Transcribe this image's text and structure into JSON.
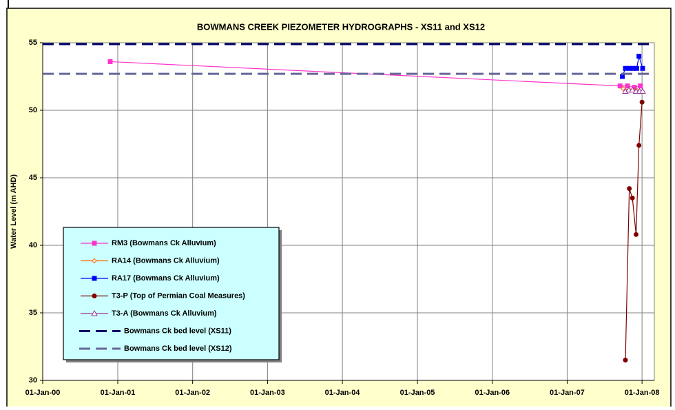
{
  "chart_data": {
    "type": "scatter",
    "title": "BOWMANS CREEK PIEZOMETER HYDROGRAPHS - XS11 and XS12",
    "y_label": "Water Level (m AHD)",
    "xlim": [
      "2000-01-01",
      "2008-03-01"
    ],
    "xticks": [
      {
        "value": "2000-01-01",
        "label": "01-Jan-00"
      },
      {
        "value": "2001-01-01",
        "label": "01-Jan-01"
      },
      {
        "value": "2002-01-01",
        "label": "01-Jan-02"
      },
      {
        "value": "2003-01-01",
        "label": "01-Jan-03"
      },
      {
        "value": "2004-01-01",
        "label": "01-Jan-04"
      },
      {
        "value": "2005-01-01",
        "label": "01-Jan-05"
      },
      {
        "value": "2006-01-01",
        "label": "01-Jan-06"
      },
      {
        "value": "2007-01-01",
        "label": "01-Jan-07"
      },
      {
        "value": "2008-01-01",
        "label": "01-Jan-08"
      }
    ],
    "ylim": [
      30,
      55
    ],
    "yticks": [
      30,
      35,
      40,
      45,
      50,
      55
    ],
    "grid": true,
    "series": [
      {
        "name": "RM3 (Bowmans Ck Alluvium)",
        "color": "#ff33cc",
        "marker": "square",
        "x": [
          "2000-11-25",
          "2007-09-16",
          "2007-10-22",
          "2007-11-25",
          "2007-12-24"
        ],
        "values": [
          53.6,
          51.8,
          51.8,
          51.7,
          51.8
        ]
      },
      {
        "name": "RA14 (Bowmans Ck Alluvium)",
        "color": "#ff6600",
        "marker": "diamond",
        "x": [
          "2007-10-01",
          "2007-11-01",
          "2007-12-05"
        ],
        "values": [
          51.6,
          51.5,
          51.5
        ]
      },
      {
        "name": "RA17 (Bowmans Ck Alluvium)",
        "color": "#0000ff",
        "marker": "square",
        "x": [
          "2007-09-27",
          "2007-10-12",
          "2007-10-31",
          "2007-11-18",
          "2007-12-06",
          "2007-12-17",
          "2008-01-04"
        ],
        "values": [
          52.5,
          53.1,
          53.1,
          53.1,
          53.1,
          54.0,
          53.1
        ]
      },
      {
        "name": "T3-P (Top of Permian Coal Measures)",
        "color": "#800000",
        "marker": "circle",
        "x": [
          "2007-10-12",
          "2007-10-31",
          "2007-11-15",
          "2007-12-03",
          "2007-12-17",
          "2008-01-01"
        ],
        "values": [
          31.5,
          44.2,
          43.5,
          40.8,
          47.4,
          50.6
        ]
      },
      {
        "name": "T3-A (Bowmans Ck Alluvium)",
        "color": "#993399",
        "marker": "triangle",
        "x": [
          "2007-10-12",
          "2007-10-29",
          "2007-11-15",
          "2007-12-03",
          "2007-12-20",
          "2008-01-04"
        ],
        "values": [
          51.4,
          51.5,
          51.5,
          51.4,
          51.4,
          51.4
        ]
      },
      {
        "name": "Bowmans Ck bed level (XS11)",
        "color": "#000066",
        "marker": "dashed",
        "level": 54.9
      },
      {
        "name": "Bowmans Ck bed level (XS12)",
        "color": "#666699",
        "marker": "dashed",
        "level": 52.7
      }
    ]
  }
}
